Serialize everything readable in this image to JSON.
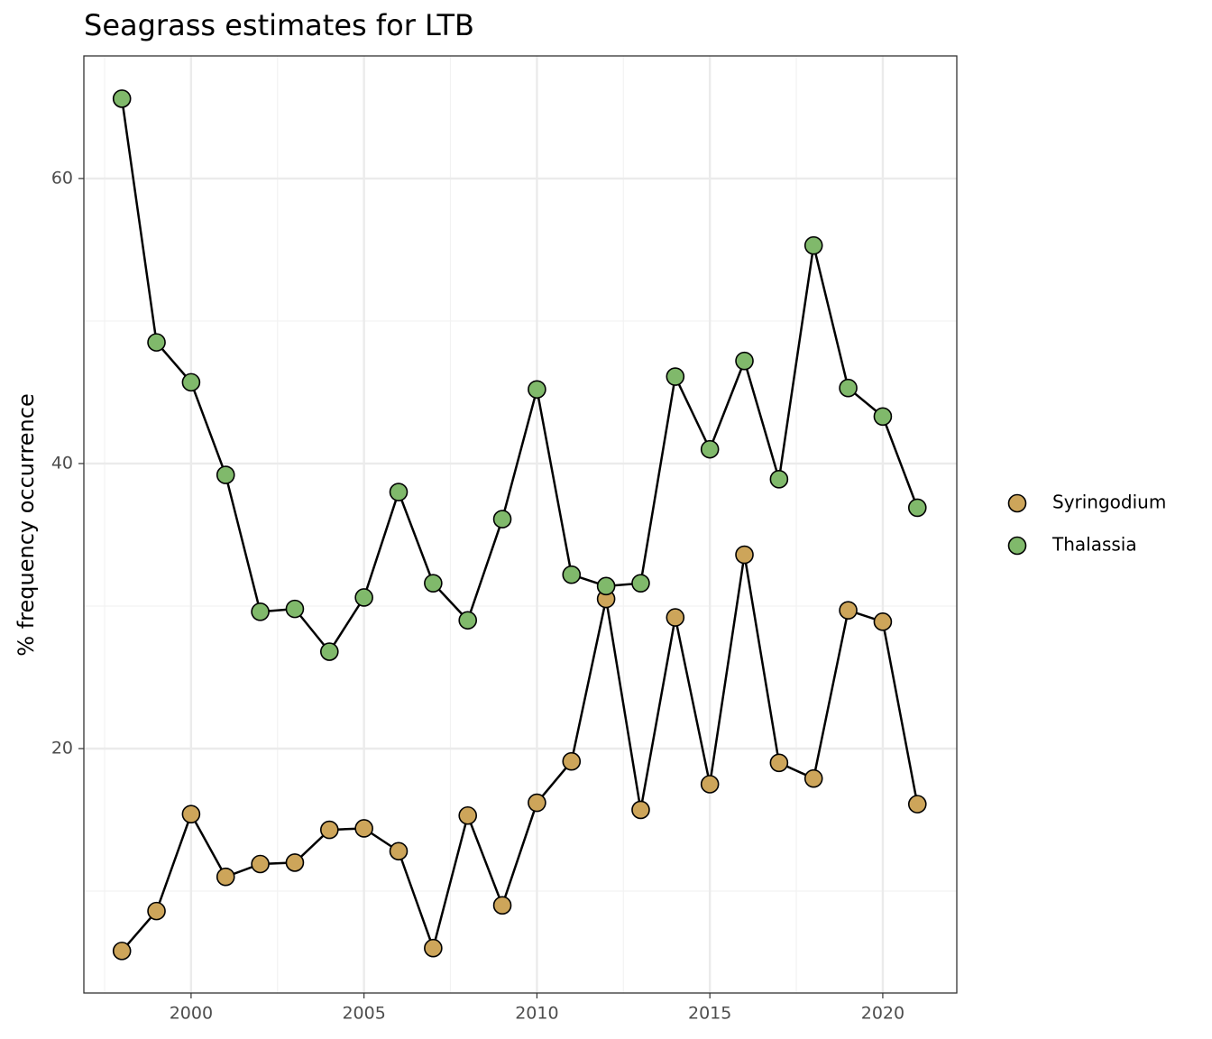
{
  "chart_data": {
    "type": "line",
    "title": "Seagrass estimates for LTB",
    "y_label": "% frequency occurrence",
    "x": [
      1998,
      1999,
      2000,
      2001,
      2002,
      2003,
      2004,
      2005,
      2006,
      2007,
      2008,
      2009,
      2010,
      2011,
      2012,
      2013,
      2014,
      2015,
      2016,
      2017,
      2018,
      2019,
      2020,
      2021
    ],
    "series": [
      {
        "name": "Syringodium",
        "color": "#cda55a",
        "values": [
          5.8,
          8.6,
          15.4,
          11.0,
          11.9,
          12.0,
          14.3,
          14.4,
          12.8,
          6.0,
          15.3,
          9.0,
          16.2,
          19.1,
          30.5,
          15.7,
          29.2,
          17.5,
          33.6,
          19.0,
          17.9,
          29.7,
          28.9,
          16.1
        ]
      },
      {
        "name": "Thalassia",
        "color": "#80b96b",
        "values": [
          65.6,
          48.5,
          45.7,
          39.2,
          29.6,
          29.8,
          26.8,
          30.6,
          38.0,
          31.6,
          29.0,
          36.1,
          45.2,
          32.2,
          31.4,
          31.6,
          46.1,
          41.0,
          47.2,
          38.9,
          55.3,
          45.3,
          43.3,
          36.9
        ]
      }
    ],
    "xlim": [
      1996.9,
      2022.14
    ],
    "xticks": [
      2000,
      2005,
      2010,
      2015,
      2020
    ],
    "ylim": [
      2.85,
      68.6
    ],
    "yticks": [
      20,
      40,
      60
    ],
    "grid": true,
    "legend": "right"
  }
}
